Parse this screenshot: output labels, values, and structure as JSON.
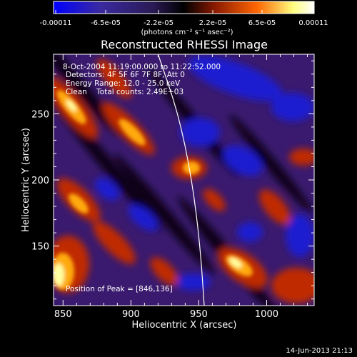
{
  "colorbar": {
    "tick_labels": [
      "-0.00011",
      "-6.5e-05",
      "-2.2e-05",
      "2.2e-05",
      "6.5e-05",
      "0.00011"
    ],
    "unit_label": "(photons cm⁻² s⁻¹ asec⁻²)",
    "range": [
      -0.00011,
      0.00011
    ],
    "colors": [
      "#0000ff",
      "#3a2aa0",
      "#2a1a55",
      "#000000",
      "#8b1a00",
      "#ff6600",
      "#ffff80",
      "#ffffff"
    ]
  },
  "chart_data": {
    "type": "heatmap",
    "title": "Reconstructed RHESSI Image",
    "xlabel": "Heliocentric X (arcsec)",
    "ylabel": "Heliocentric Y (arcsec)",
    "xlim": [
      843,
      1035
    ],
    "ylim": [
      105,
      295
    ],
    "x_ticks": [
      850,
      900,
      950,
      1000
    ],
    "x_tick_labels": [
      "850",
      "900",
      "950",
      "1000"
    ],
    "y_ticks": [
      150,
      200,
      250
    ],
    "y_tick_labels": [
      "150",
      "200",
      "250"
    ],
    "limb_curve": [
      [
        920,
        295
      ],
      [
        935,
        250
      ],
      [
        945,
        200
      ],
      [
        951,
        150
      ],
      [
        954,
        105
      ]
    ],
    "peak": [
      846,
      136
    ],
    "annotations": [
      "8-Oct-2004 11:19:00.000 to 11:22:52.000",
      "Detectors: 4F 5F 6F 7F 8F, Att 0",
      "Energy Range: 12.0 - 25.0 keV",
      "Clean    Total counts: 2.49E+03"
    ],
    "peak_label": "Position of Peak = [846,136]"
  },
  "footer": {
    "timestamp": "14-Jun-2013 21:13"
  }
}
